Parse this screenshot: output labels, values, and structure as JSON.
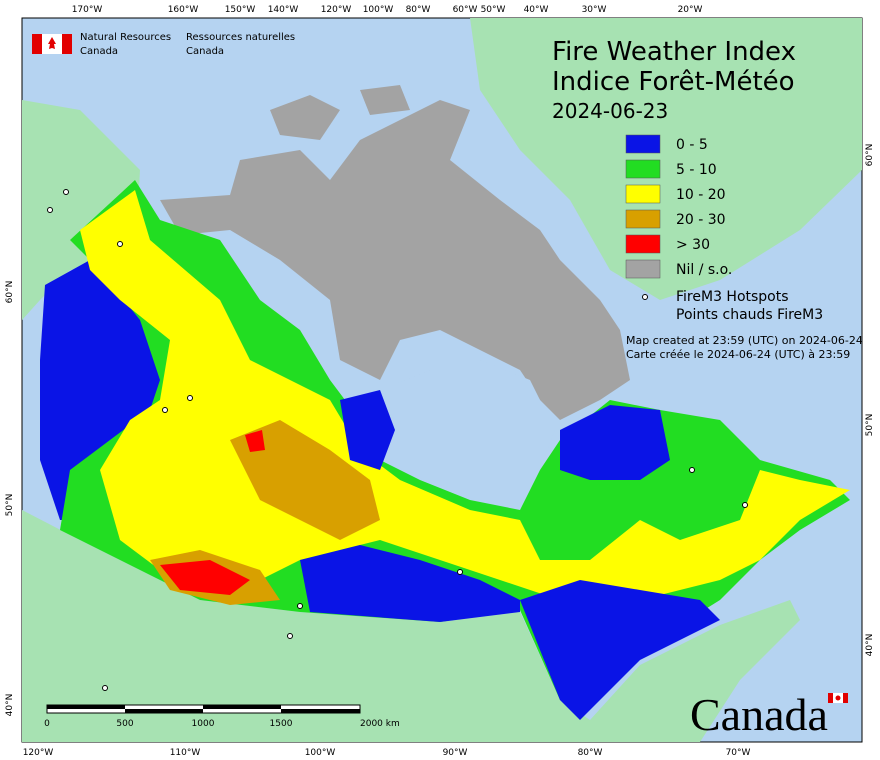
{
  "header": {
    "agency_en": [
      "Natural Resources",
      "Canada"
    ],
    "agency_fr": [
      "Ressources naturelles",
      "Canada"
    ]
  },
  "title": [
    "Fire Weather Index",
    "Indice Forêt-Météo"
  ],
  "date": "2024-06-23",
  "legend": {
    "items": [
      "0 - 5",
      "5 - 10",
      "10 - 20",
      "20 - 30",
      "> 30",
      "Nil / s.o."
    ],
    "hotspots": [
      "FireM3 Hotspots",
      "Points chauds FireM3"
    ]
  },
  "note": [
    "Map created at 23:59 (UTC) on 2024-06-24",
    "Carte créée le 2024-06-24 (UTC) à 23:59"
  ],
  "axes": {
    "top": [
      "170°W",
      "160°W",
      "150°W",
      "140°W",
      "120°W",
      "100°W",
      "80°W",
      "60°W",
      "50°W",
      "40°W",
      "30°W",
      "20°W"
    ],
    "bottom": [
      "120°W",
      "110°W",
      "100°W",
      "90°W",
      "80°W",
      "70°W"
    ],
    "left": [
      "60°N",
      "50°N",
      "40°N"
    ],
    "right": [
      "60°N",
      "50°N",
      "40°N"
    ]
  },
  "scale": [
    "0",
    "500",
    "1000",
    "1500",
    "2000 km"
  ],
  "wordmark": "Canada"
}
